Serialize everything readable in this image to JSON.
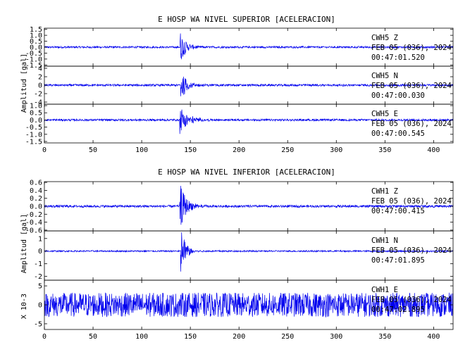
{
  "chart_data": [
    {
      "type": "line",
      "title": "E HOSP WA NIVEL SUPERIOR [ACELERACION]",
      "ylabel": "Amplitud [gal]",
      "xlabel": "",
      "xlim": [
        0,
        420
      ],
      "x_ticks": [
        "0",
        "50",
        "100",
        "150",
        "200",
        "250",
        "300",
        "350",
        "400"
      ],
      "line_color": "#0000ee",
      "grid": false,
      "subplots": [
        {
          "ylim": [
            -1.6,
            1.6
          ],
          "y_ticks": [
            "-1.5",
            "-1.0",
            "-0.5",
            "0.0",
            "0.5",
            "1.0",
            "1.5"
          ],
          "station": "CWH5",
          "component": "Z",
          "date": "FEB 05 (036), 2024",
          "time": "00:47:01.520",
          "noise_amplitude": 0.08,
          "event_onset_s": 139,
          "event_peak": 1.5,
          "event_decay_s": 6
        },
        {
          "ylim": [
            -4.5,
            4.5
          ],
          "y_ticks": [
            "-4",
            "-2",
            "0",
            "2",
            "4"
          ],
          "station": "CWH5",
          "component": "N",
          "date": "FEB 05 (036), 2024",
          "time": "00:47:00.030",
          "noise_amplitude": 0.25,
          "event_onset_s": 140,
          "event_peak": 3.6,
          "event_decay_s": 7
        },
        {
          "ylim": [
            -1.6,
            1.1
          ],
          "y_ticks": [
            "-1.5",
            "-1.0",
            "-0.5",
            "0.0",
            "0.5",
            "1.0"
          ],
          "station": "CWH5",
          "component": "E",
          "date": "FEB 05 (036), 2024",
          "time": "00:47:00.545",
          "noise_amplitude": 0.07,
          "event_onset_s": 139,
          "event_peak": 1.0,
          "event_decay_s": 9
        }
      ]
    },
    {
      "type": "line",
      "title": "E HOSP WA NIVEL INFERIOR [ACELERACION]",
      "ylabel": "Amplitud [gal]",
      "xlabel": "",
      "xlim": [
        0,
        420
      ],
      "x_ticks": [
        "0",
        "50",
        "100",
        "150",
        "200",
        "250",
        "300",
        "350",
        "400"
      ],
      "line_color": "#0000ee",
      "grid": false,
      "subplots": [
        {
          "ylim": [
            -0.62,
            0.62
          ],
          "y_ticks": [
            "-0.6",
            "-0.4",
            "-0.2",
            "0.0",
            "0.2",
            "0.4",
            "0.6"
          ],
          "station": "CWH1",
          "component": "Z",
          "date": "FEB 05 (036), 2024",
          "time": "00:47:00.415",
          "noise_amplitude": 0.03,
          "event_onset_s": 139,
          "event_peak": 0.6,
          "event_decay_s": 7
        },
        {
          "ylim": [
            -2.3,
            1.6
          ],
          "y_ticks": [
            "-2",
            "-1",
            "0",
            "1"
          ],
          "station": "CWH1",
          "component": "N",
          "date": "FEB 05 (036), 2024",
          "time": "00:47:01.895",
          "noise_amplitude": 0.06,
          "event_onset_s": 140,
          "event_peak": 2.2,
          "event_decay_s": 5
        },
        {
          "ylim": [
            -6.5,
            6.5
          ],
          "y_ticks": [
            "-5",
            "0",
            "5"
          ],
          "ylabel_extra": "X 10-3",
          "station": "CWH1",
          "component": "E",
          "date": "FEB 05 (036), 2024",
          "time": "00:47:02.895",
          "noise_amplitude": 3.2,
          "event_onset_s": 139,
          "event_peak": 0,
          "event_decay_s": 5
        }
      ]
    }
  ]
}
